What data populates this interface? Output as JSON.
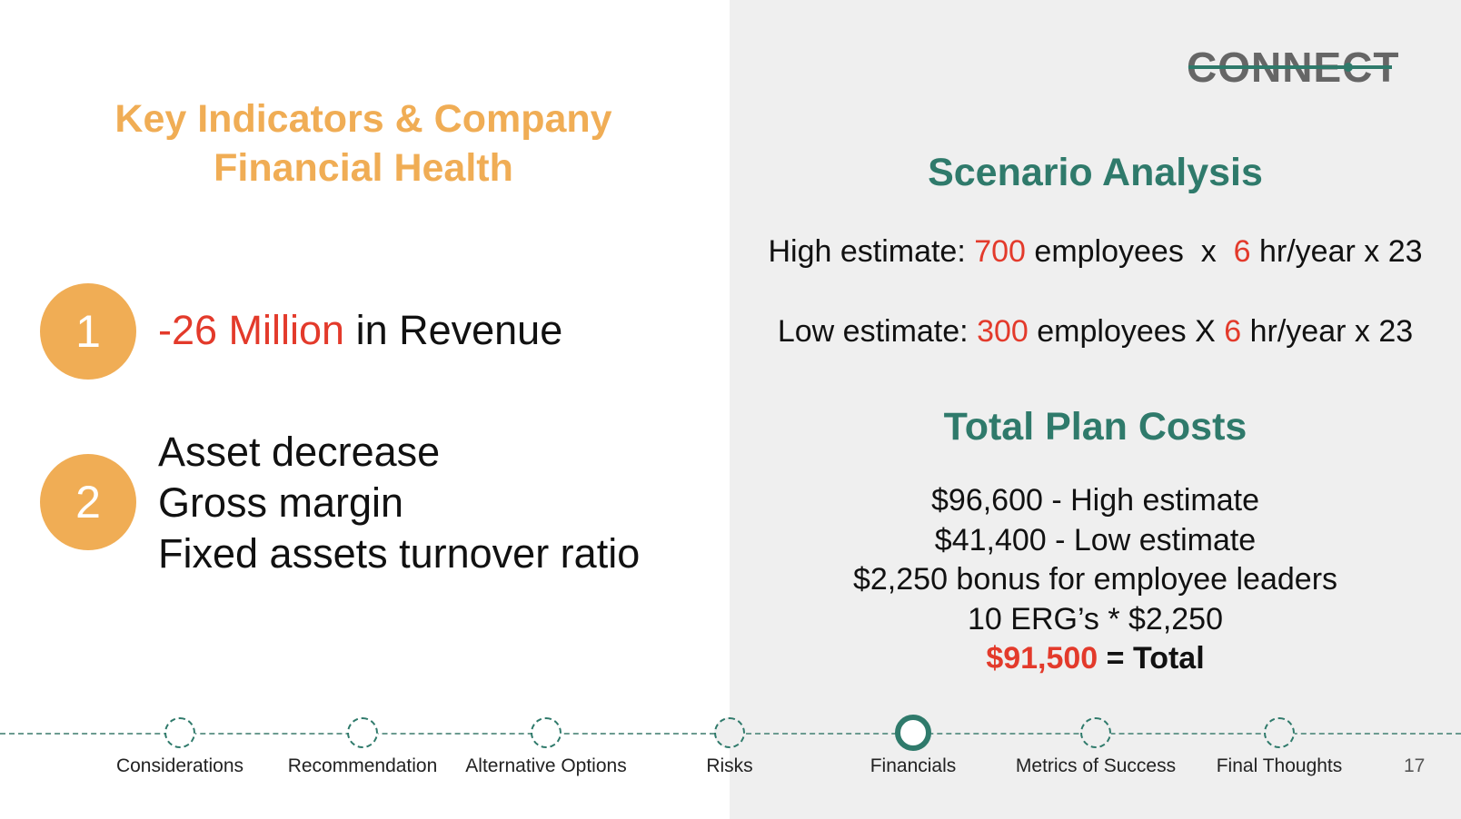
{
  "logo": {
    "text": "CONNECT"
  },
  "left": {
    "title_line1": "Key Indicators & Company",
    "title_line2": "Financial Health",
    "indicators": [
      {
        "number": "1",
        "highlight": "-26 Million",
        "text": " in Revenue"
      },
      {
        "number": "2",
        "lines": [
          "Asset decrease",
          "Gross margin",
          "Fixed assets turnover ratio"
        ]
      }
    ]
  },
  "right": {
    "scenario_title": "Scenario Analysis",
    "high": {
      "prefix": "High estimate: ",
      "employees": "700",
      "mid": " employees  x  ",
      "hours": "6",
      "suffix": " hr/year x 23"
    },
    "low": {
      "prefix": "Low estimate: ",
      "employees": "300",
      "mid": " employees X ",
      "hours": "6",
      "suffix": " hr/year x 23"
    },
    "costs_title": "Total Plan Costs",
    "costs": [
      "$96,600 - High estimate",
      "$41,400 - Low estimate",
      "$2,250 bonus for employee leaders",
      "10 ERG’s * $2,250"
    ],
    "total_amount": "$91,500",
    "total_label": " = Total"
  },
  "timeline": {
    "items": [
      "Considerations",
      "Recommendation",
      "Alternative Options",
      "Risks",
      "Financials",
      "Metrics of Success",
      "Final Thoughts"
    ],
    "active": "Financials"
  },
  "page_number": "17",
  "colors": {
    "accent_orange": "#f0ad55",
    "teal": "#2f7a6b",
    "red": "#e33a2b",
    "panel_gray": "#efefef"
  }
}
